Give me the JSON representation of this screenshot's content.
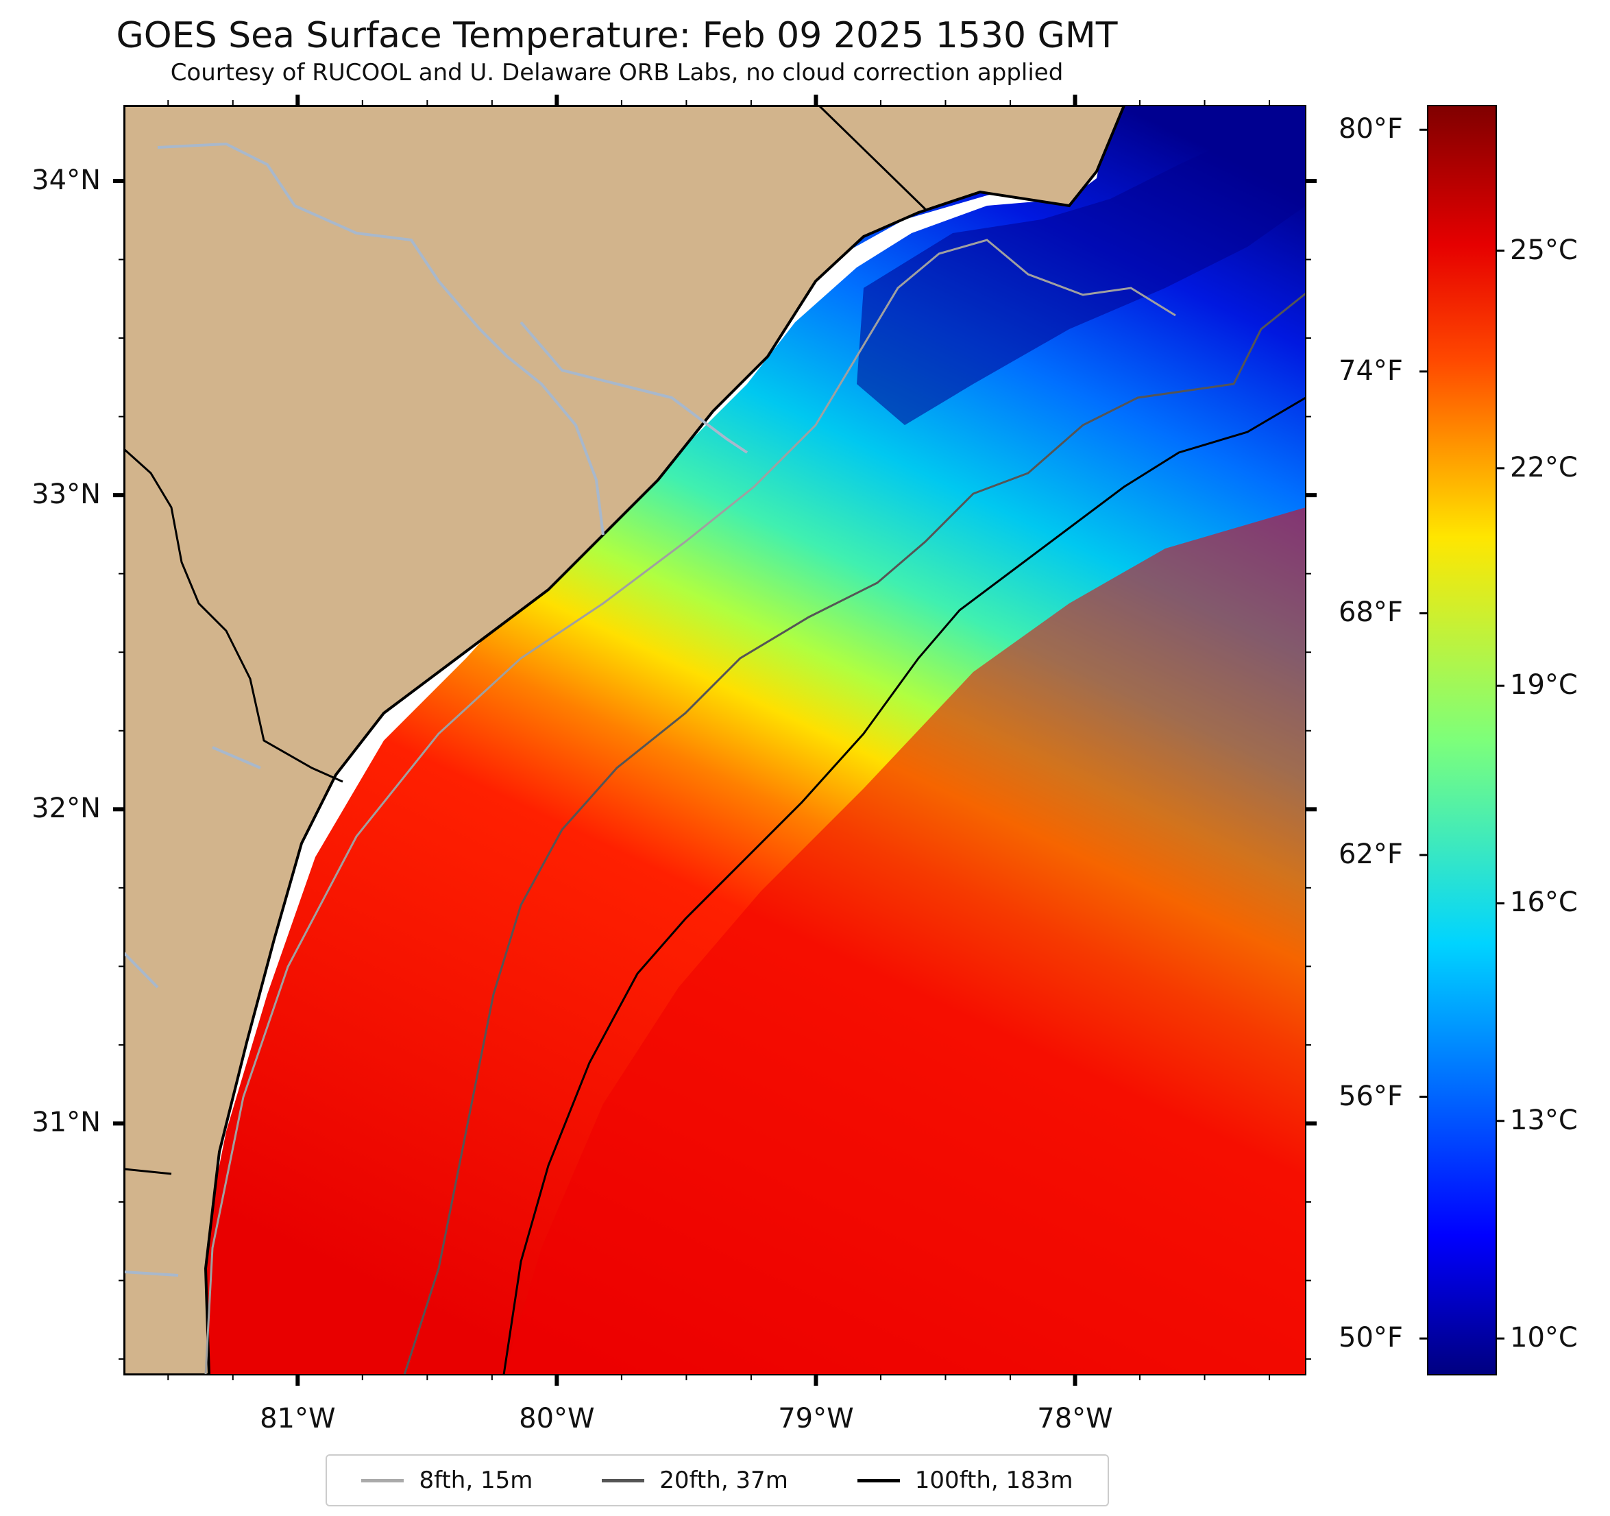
{
  "title": "GOES Sea Surface Temperature: Feb 09 2025 1530 GMT",
  "subtitle": "Courtesy of RUCOOL and U. Delaware ORB Labs, no cloud correction applied",
  "lon_ticks": [
    {
      "value": -81,
      "label": "81°W"
    },
    {
      "value": -80,
      "label": "80°W"
    },
    {
      "value": -79,
      "label": "79°W"
    },
    {
      "value": -78,
      "label": "78°W"
    }
  ],
  "lat_ticks": [
    {
      "value": 34,
      "label": "34°N"
    },
    {
      "value": 33,
      "label": "33°N"
    },
    {
      "value": 32,
      "label": "32°N"
    },
    {
      "value": 31,
      "label": "31°N"
    }
  ],
  "colorbar": {
    "range_c": [
      9.5,
      27.0
    ],
    "celsius_ticks": [
      {
        "value": 10,
        "label": "10°C"
      },
      {
        "value": 13,
        "label": "13°C"
      },
      {
        "value": 16,
        "label": "16°C"
      },
      {
        "value": 19,
        "label": "19°C"
      },
      {
        "value": 22,
        "label": "22°C"
      },
      {
        "value": 25,
        "label": "25°C"
      }
    ],
    "fahrenheit_ticks": [
      {
        "value": 50,
        "label": "50°F"
      },
      {
        "value": 56,
        "label": "56°F"
      },
      {
        "value": 62,
        "label": "62°F"
      },
      {
        "value": 68,
        "label": "68°F"
      },
      {
        "value": 74,
        "label": "74°F"
      },
      {
        "value": 80,
        "label": "80°F"
      }
    ]
  },
  "legend": [
    {
      "label": "8fth, 15m",
      "color": "#aaaaaa"
    },
    {
      "label": "20fth, 37m",
      "color": "#555555"
    },
    {
      "label": "100fth, 183m",
      "color": "#000000"
    }
  ],
  "colors": {
    "land": "#d2b48c",
    "coast": "#000000",
    "rivers": "#a8b8cc",
    "cold": "#00008b",
    "warm": "#ff2000"
  }
}
